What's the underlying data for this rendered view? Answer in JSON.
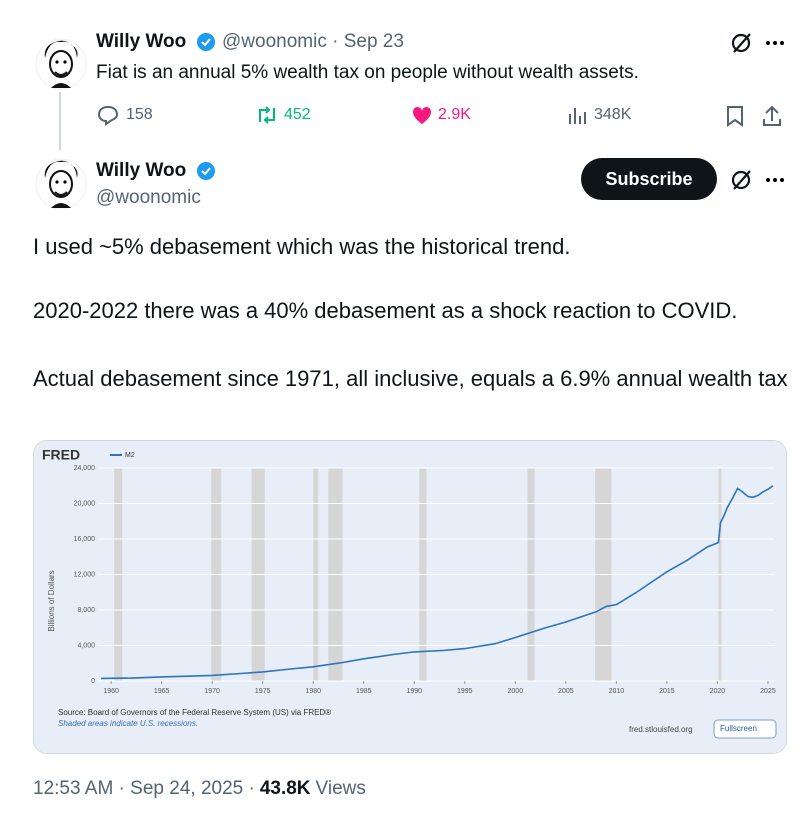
{
  "tweet": {
    "author": "Willy Woo",
    "meta": "@woonomic · Sep 23",
    "text": "Fiat is an annual 5% wealth tax on people without wealth assets.",
    "replies": "158",
    "reposts": "452",
    "likes": "2.9K",
    "views": "348K"
  },
  "reply": {
    "author": "Willy Woo",
    "handle": "@woonomic",
    "button": "Subscribe",
    "paragraphs": [
      "I used ~5% debasement which was the historical trend.",
      "2020-2022 there was a 40% debasement as a shock reaction to COVID.",
      "Actual debasement since 1971, all inclusive, equals a 6.9% annual wealth tax"
    ],
    "timestamp": "12:53 AM · Sep 24, 2025 ·",
    "view_count": "43.8K",
    "views_label": "Views"
  },
  "chart_data": {
    "type": "line",
    "brand": "FRED",
    "ylabel": "Billions of Dollars",
    "source": "Source: Board of Governors of the Federal Reserve System (US) via FRED®",
    "note": "Shaded areas indicate U.S. recessions.",
    "site": "fred.stlouisfed.org",
    "button": "Fullscreen",
    "x": [
      1959,
      1962,
      1965,
      1968,
      1970,
      1973,
      1975,
      1978,
      1980,
      1983,
      1985,
      1988,
      1990,
      1993,
      1995,
      1998,
      2000,
      2003,
      2005,
      2008,
      2009,
      2010,
      2012,
      2015,
      2017,
      2019,
      2020.1,
      2020.3,
      2020.6,
      2021,
      2021.5,
      2022,
      2022.5,
      2023,
      2023.5,
      2024,
      2024.5,
      2025,
      2025.5
    ],
    "series": [
      {
        "name": "M2",
        "color": "#2a74c0",
        "values": [
          290,
          330,
          460,
          560,
          630,
          860,
          1020,
          1380,
          1600,
          2100,
          2500,
          3000,
          3280,
          3450,
          3650,
          4200,
          4900,
          6000,
          6650,
          7800,
          8400,
          8600,
          10000,
          12300,
          13600,
          15100,
          15600,
          17800,
          18500,
          19600,
          20600,
          21700,
          21300,
          20800,
          20700,
          20900,
          21300,
          21600,
          22000
        ]
      }
    ],
    "xlim": [
      1958.8,
      2025.6
    ],
    "ylim": [
      0,
      24000
    ],
    "xticks": [
      1960,
      1965,
      1970,
      1975,
      1980,
      1985,
      1990,
      1995,
      2000,
      2005,
      2010,
      2015,
      2020,
      2025
    ],
    "yticks": [
      0,
      {
        "value": 4000,
        "label": "4,000"
      },
      {
        "value": 8000,
        "label": "8,000"
      },
      {
        "value": 12000,
        "label": "12,000"
      },
      {
        "value": 16000,
        "label": "16,000"
      },
      {
        "value": 20000,
        "label": "20,000"
      },
      {
        "value": 24000,
        "label": "24,000"
      }
    ],
    "recessions": [
      [
        1960.3,
        1961.1
      ],
      [
        1969.9,
        1970.9
      ],
      [
        1973.9,
        1975.2
      ],
      [
        1980.0,
        1980.5
      ],
      [
        1981.5,
        1982.9
      ],
      [
        1990.5,
        1991.2
      ],
      [
        2001.2,
        2001.9
      ],
      [
        2007.9,
        2009.5
      ],
      [
        2020.1,
        2020.4
      ]
    ],
    "recession_color": "#d6d6d6",
    "grid": true
  }
}
